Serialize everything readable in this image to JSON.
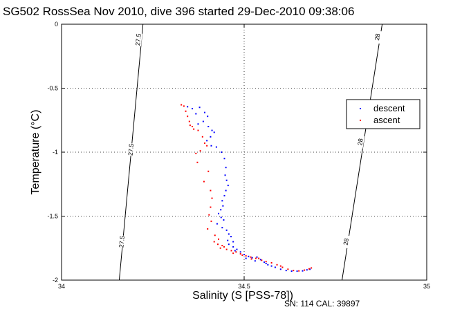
{
  "chart_data": {
    "type": "scatter",
    "title": "SG502 RossSea Nov 2010, dive 396 started 29-Dec-2010 09:38:06",
    "xlabel": "Salinity (S [PSS-78])",
    "ylabel": "Temperature (°C)",
    "xlim": [
      34,
      35
    ],
    "ylim": [
      -2,
      0
    ],
    "xticks": [
      34,
      34.5,
      35
    ],
    "xtick_labels": [
      "34",
      "34.5",
      "35"
    ],
    "yticks": [
      0,
      -0.5,
      -1,
      -1.5,
      -2
    ],
    "ytick_labels": [
      "0",
      "-0.5",
      "-1",
      "-1.5",
      "-2"
    ],
    "grid": true,
    "grid_style": "dotted",
    "legend_position": "upper-right",
    "footnote": "SN: 114  CAL: 39897",
    "colors": {
      "descent": "#0000ff",
      "ascent": "#ff0000",
      "contour": "#000000"
    },
    "contours": [
      {
        "label": "27.5",
        "points": [
          [
            34.223,
            0
          ],
          [
            34.158,
            -2
          ]
        ],
        "label_positions": [
          [
            34.21,
            -0.12
          ],
          [
            34.19,
            -0.98
          ],
          [
            34.165,
            -1.7
          ]
        ]
      },
      {
        "label": "28",
        "points": [
          [
            34.878,
            0
          ],
          [
            34.768,
            -2
          ]
        ],
        "label_positions": [
          [
            34.865,
            -0.1
          ],
          [
            34.818,
            -0.92
          ],
          [
            34.779,
            -1.7
          ]
        ]
      }
    ],
    "series": [
      {
        "name": "descent",
        "marker": "dot",
        "points": [
          [
            34.345,
            -0.645
          ],
          [
            34.358,
            -0.66
          ],
          [
            34.368,
            -0.7
          ],
          [
            34.378,
            -0.65
          ],
          [
            34.392,
            -0.69
          ],
          [
            34.4,
            -0.72
          ],
          [
            34.388,
            -0.76
          ],
          [
            34.374,
            -0.78
          ],
          [
            34.402,
            -0.8
          ],
          [
            34.412,
            -0.83
          ],
          [
            34.418,
            -0.845
          ],
          [
            34.408,
            -0.88
          ],
          [
            34.398,
            -0.91
          ],
          [
            34.41,
            -0.95
          ],
          [
            34.424,
            -0.96
          ],
          [
            34.438,
            -1.0
          ],
          [
            34.446,
            -1.05
          ],
          [
            34.45,
            -1.12
          ],
          [
            34.448,
            -1.18
          ],
          [
            34.452,
            -1.22
          ],
          [
            34.456,
            -1.26
          ],
          [
            34.45,
            -1.3
          ],
          [
            34.446,
            -1.34
          ],
          [
            34.44,
            -1.38
          ],
          [
            34.442,
            -1.42
          ],
          [
            34.436,
            -1.45
          ],
          [
            34.43,
            -1.48
          ],
          [
            34.437,
            -1.51
          ],
          [
            34.444,
            -1.53
          ],
          [
            34.426,
            -1.56
          ],
          [
            34.44,
            -1.59
          ],
          [
            34.452,
            -1.61
          ],
          [
            34.458,
            -1.64
          ],
          [
            34.464,
            -1.66
          ],
          [
            34.455,
            -1.69
          ],
          [
            34.47,
            -1.7
          ],
          [
            34.458,
            -1.72
          ],
          [
            34.47,
            -1.74
          ],
          [
            34.48,
            -1.76
          ],
          [
            34.49,
            -1.78
          ],
          [
            34.5,
            -1.8
          ],
          [
            34.512,
            -1.815
          ],
          [
            34.522,
            -1.825
          ],
          [
            34.535,
            -1.82
          ],
          [
            34.545,
            -1.84
          ],
          [
            34.555,
            -1.86
          ],
          [
            34.565,
            -1.88
          ],
          [
            34.575,
            -1.89
          ],
          [
            34.585,
            -1.9
          ],
          [
            34.6,
            -1.915
          ],
          [
            34.615,
            -1.925
          ],
          [
            34.63,
            -1.93
          ],
          [
            34.645,
            -1.93
          ],
          [
            34.66,
            -1.928
          ],
          [
            34.672,
            -1.92
          ],
          [
            34.68,
            -1.915
          ],
          [
            34.475,
            -1.77
          ],
          [
            34.505,
            -1.83
          ],
          [
            34.53,
            -1.85
          ],
          [
            34.56,
            -1.87
          ]
        ]
      },
      {
        "name": "ascent",
        "marker": "dot",
        "points": [
          [
            34.328,
            -0.63
          ],
          [
            34.335,
            -0.64
          ],
          [
            34.34,
            -0.68
          ],
          [
            34.345,
            -0.72
          ],
          [
            34.35,
            -0.76
          ],
          [
            34.352,
            -0.79
          ],
          [
            34.358,
            -0.8
          ],
          [
            34.362,
            -0.82
          ],
          [
            34.374,
            -0.83
          ],
          [
            34.386,
            -0.88
          ],
          [
            34.392,
            -0.93
          ],
          [
            34.398,
            -0.95
          ],
          [
            34.38,
            -0.99
          ],
          [
            34.368,
            -1.01
          ],
          [
            34.372,
            -1.08
          ],
          [
            34.402,
            -1.15
          ],
          [
            34.39,
            -1.23
          ],
          [
            34.408,
            -1.3
          ],
          [
            34.412,
            -1.36
          ],
          [
            34.408,
            -1.43
          ],
          [
            34.404,
            -1.49
          ],
          [
            34.41,
            -1.54
          ],
          [
            34.4,
            -1.6
          ],
          [
            34.42,
            -1.65
          ],
          [
            34.43,
            -1.68
          ],
          [
            34.418,
            -1.7
          ],
          [
            34.428,
            -1.72
          ],
          [
            34.44,
            -1.73
          ],
          [
            34.435,
            -1.75
          ],
          [
            34.452,
            -1.76
          ],
          [
            34.465,
            -1.77
          ],
          [
            34.478,
            -1.78
          ],
          [
            34.49,
            -1.795
          ],
          [
            34.505,
            -1.81
          ],
          [
            34.518,
            -1.82
          ],
          [
            34.532,
            -1.83
          ],
          [
            34.548,
            -1.845
          ],
          [
            34.56,
            -1.855
          ],
          [
            34.575,
            -1.865
          ],
          [
            34.59,
            -1.88
          ],
          [
            34.605,
            -1.9
          ],
          [
            34.62,
            -1.915
          ],
          [
            34.635,
            -1.925
          ],
          [
            34.65,
            -1.928
          ],
          [
            34.665,
            -1.922
          ],
          [
            34.678,
            -1.912
          ],
          [
            34.684,
            -1.905
          ],
          [
            34.445,
            -1.74
          ],
          [
            34.47,
            -1.79
          ],
          [
            34.495,
            -1.805
          ],
          [
            34.52,
            -1.835
          ],
          [
            34.54,
            -1.83
          ],
          [
            34.6,
            -1.89
          ]
        ]
      }
    ]
  }
}
